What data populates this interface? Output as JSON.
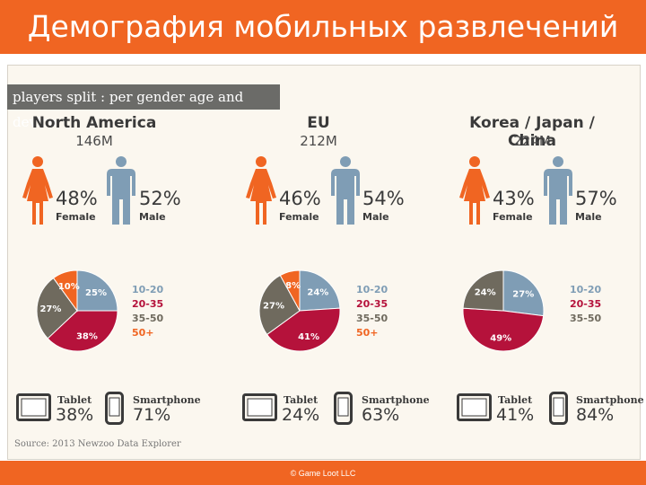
{
  "title": "Демография мобильных развлечений",
  "footer": "© Game Loot LLC",
  "header": "players split : per gender age and device",
  "source": "Source: 2013 Newzoo Data Explorer",
  "colors": {
    "orange": "#f06522",
    "blue": "#7f9db5",
    "crimson": "#b5123b",
    "gray": "#6f6a5e",
    "slate": "#6b6b68"
  },
  "labels": {
    "female": "Female",
    "male": "Male",
    "tablet": "Tablet",
    "smartphone": "Smartphone"
  },
  "age_groups": [
    "10-20",
    "20-35",
    "35-50",
    "50+"
  ],
  "regions": [
    {
      "name": "North America",
      "players": "146M",
      "female": "48%",
      "male": "52%",
      "tablet": "38%",
      "smartphone": "71%",
      "pie": [
        {
          "group": "10-20",
          "value": 25,
          "label": "25%"
        },
        {
          "group": "20-35",
          "value": 38,
          "label": "38%"
        },
        {
          "group": "35-50",
          "value": 27,
          "label": "27%"
        },
        {
          "group": "50+",
          "value": 10,
          "label": "10%"
        }
      ]
    },
    {
      "name": "EU",
      "players": "212M",
      "female": "46%",
      "male": "54%",
      "tablet": "24%",
      "smartphone": "63%",
      "pie": [
        {
          "group": "10-20",
          "value": 24,
          "label": "24%"
        },
        {
          "group": "20-35",
          "value": 41,
          "label": "41%"
        },
        {
          "group": "35-50",
          "value": 27,
          "label": "27%"
        },
        {
          "group": "50+",
          "value": 8,
          "label": "8%"
        }
      ]
    },
    {
      "name": "Korea / Japan / China",
      "players": "224M",
      "female": "43%",
      "male": "57%",
      "tablet": "41%",
      "smartphone": "84%",
      "pie": [
        {
          "group": "10-20",
          "value": 27,
          "label": "27%"
        },
        {
          "group": "20-35",
          "value": 49,
          "label": "49%"
        },
        {
          "group": "35-50",
          "value": 24,
          "label": "24%"
        }
      ]
    }
  ]
}
